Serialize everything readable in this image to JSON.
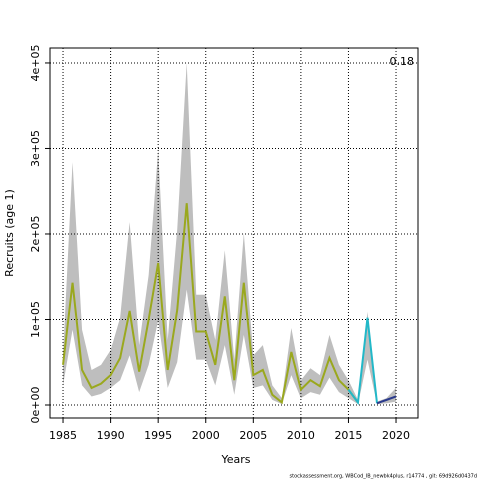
{
  "chart_data": {
    "type": "line",
    "ylabel": "Recruits (age 1)",
    "xlabel": "Years",
    "annotation": "0.18",
    "footer": "stockassessment.org, WBCod_IB_newbk4plus, r14774 , git: 69d926d0437d",
    "x": [
      1985,
      1986,
      1987,
      1988,
      1989,
      1990,
      1991,
      1992,
      1993,
      1994,
      1995,
      1996,
      1997,
      1998,
      1999,
      2000,
      2001,
      2002,
      2003,
      2004,
      2005,
      2006,
      2007,
      2008,
      2009,
      2010,
      2011,
      2012,
      2013,
      2014,
      2015,
      2016,
      2017,
      2018,
      2019,
      2020
    ],
    "band": {
      "color": "#bebebe",
      "upper": [
        58000,
        284000,
        88000,
        41000,
        47000,
        64000,
        102000,
        214000,
        70000,
        152000,
        298000,
        76000,
        205000,
        400000,
        129000,
        129000,
        76000,
        181000,
        53000,
        201000,
        58000,
        70000,
        23000,
        8000,
        90000,
        29000,
        43000,
        35000,
        82000,
        47000,
        29000,
        6000,
        109000,
        4000,
        8000,
        20000
      ],
      "lower": [
        23000,
        88000,
        23000,
        10000,
        13000,
        20000,
        29000,
        58000,
        15000,
        47000,
        99000,
        20000,
        50000,
        135000,
        53000,
        53000,
        23000,
        70000,
        12000,
        82000,
        20000,
        23000,
        6000,
        1000,
        35000,
        8000,
        15000,
        12000,
        32000,
        15000,
        8000,
        1000,
        53000,
        1000,
        2000,
        4000
      ]
    },
    "series": [
      {
        "color": "#9aa81e",
        "values": [
          47000,
          143000,
          41000,
          20000,
          25000,
          35000,
          55000,
          110000,
          39000,
          100000,
          166000,
          41000,
          111000,
          236000,
          86000,
          86000,
          47000,
          127000,
          29000,
          143000,
          35000,
          41000,
          12000,
          3000,
          62000,
          18000,
          29000,
          22000,
          55000,
          29000,
          18000,
          3000,
          null,
          null,
          null,
          null
        ]
      },
      {
        "color": "#22b8c8",
        "values": [
          null,
          null,
          null,
          null,
          null,
          null,
          null,
          null,
          null,
          null,
          null,
          null,
          null,
          null,
          null,
          null,
          null,
          null,
          null,
          null,
          null,
          null,
          null,
          null,
          null,
          null,
          null,
          null,
          null,
          null,
          18000,
          3000,
          102000,
          2000,
          null,
          null
        ]
      },
      {
        "color": "#2a3a8c",
        "values": [
          null,
          null,
          null,
          null,
          null,
          null,
          null,
          null,
          null,
          null,
          null,
          null,
          null,
          null,
          null,
          null,
          null,
          null,
          null,
          null,
          null,
          null,
          null,
          null,
          null,
          null,
          null,
          null,
          null,
          null,
          null,
          null,
          null,
          2000,
          6000,
          10000
        ]
      }
    ],
    "xlim": [
      1983.63,
      2022.31
    ],
    "xticks": [
      1985,
      1990,
      1995,
      2000,
      2005,
      2010,
      2015,
      2020
    ],
    "ylim": [
      -15200,
      417500
    ],
    "yticks": [
      {
        "value": 0,
        "label": "0e+00"
      },
      {
        "value": 100000,
        "label": "1e+05"
      },
      {
        "value": 200000,
        "label": "2e+05"
      },
      {
        "value": 300000,
        "label": "3e+05"
      },
      {
        "value": 400000,
        "label": "4e+05"
      }
    ],
    "grid": true
  }
}
